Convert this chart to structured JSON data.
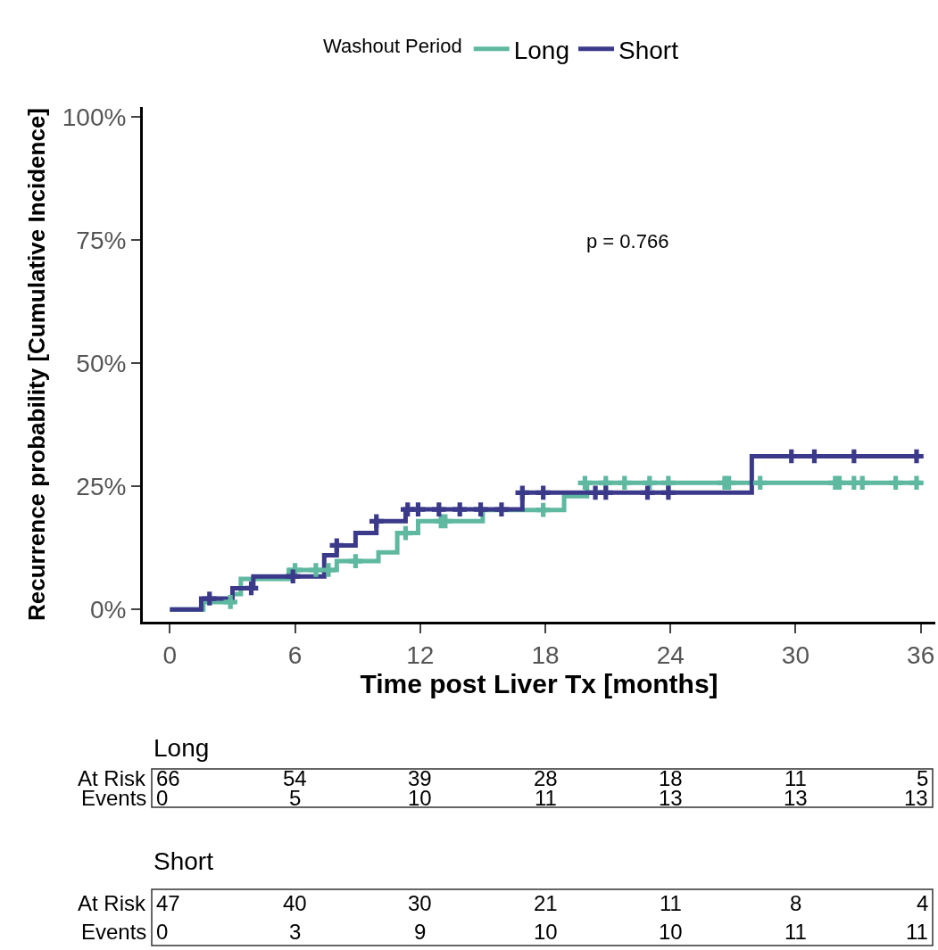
{
  "chart_data": {
    "type": "step",
    "xlabel": "Time post Liver Tx [months]",
    "ylabel": "Recurrence probability [Cumulative Incidence]",
    "legend_title": "Washout Period",
    "legend": "top",
    "xlim": [
      -1.3,
      36.7
    ],
    "xticks": [
      0,
      6,
      12,
      18,
      24,
      30,
      36
    ],
    "ylim": [
      -2.5,
      102
    ],
    "yticks": [
      {
        "value": 0,
        "label": "0%"
      },
      {
        "value": 25,
        "label": "25%"
      },
      {
        "value": 50,
        "label": "50%"
      },
      {
        "value": 75,
        "label": "75%"
      },
      {
        "value": 100,
        "label": "100%"
      }
    ],
    "marker": "none",
    "line_style": "solid",
    "annotations": [
      "p = 0.766",
      "Long",
      "At Risk",
      "66",
      "54",
      "39",
      "28",
      "18",
      "11",
      "5",
      "Events",
      "0",
      "5",
      "10",
      "11",
      "13",
      "13",
      "13",
      "Short",
      "At Risk",
      "47",
      "40",
      "30",
      "21",
      "11",
      "8",
      "4",
      "Events",
      "0",
      "3",
      "9",
      "10",
      "10",
      "11",
      "11"
    ],
    "series": [
      {
        "name": "Long",
        "color": "#5fb8a0",
        "x": [
          0,
          1.6,
          3.0,
          3.4,
          5.7,
          8.0,
          10.0,
          10.9,
          11.9,
          15.0,
          18.9,
          20.0,
          36.0
        ],
        "values": [
          0,
          1.5,
          3.1,
          6.2,
          8.0,
          9.8,
          11.6,
          15.5,
          17.9,
          20.2,
          23.0,
          25.7,
          25.7
        ]
      },
      {
        "name": "Short",
        "color": "#3b3a8a",
        "x": [
          0,
          1.5,
          3.0,
          4.0,
          7.4,
          8.0,
          8.9,
          9.9,
          11.3,
          16.9,
          27.9,
          36.0
        ],
        "values": [
          0,
          2.2,
          4.3,
          6.7,
          11.0,
          13.0,
          15.5,
          17.9,
          20.3,
          23.7,
          31.1,
          31.1
        ]
      },
      {
        "color": "#5fb8a0",
        "type": "scatter",
        "marker": "cross",
        "x": [
          2.9,
          6.0,
          7.0,
          7.6,
          8.9,
          11.3,
          13.0,
          13.2,
          17.9,
          19.9,
          20.9,
          21.8,
          23.0,
          23.9,
          26.6,
          26.8,
          28.3,
          31.9,
          32.1,
          32.8,
          33.2,
          34.8,
          35.8
        ],
        "values": [
          1.5,
          8.0,
          8.0,
          8.0,
          9.8,
          15.5,
          17.9,
          17.9,
          20.2,
          25.7,
          25.7,
          25.7,
          25.7,
          25.7,
          25.7,
          25.7,
          25.7,
          25.7,
          25.7,
          25.7,
          25.7,
          25.7,
          25.7
        ]
      },
      {
        "color": "#3b3a8a",
        "type": "scatter",
        "marker": "cross",
        "x": [
          1.9,
          3.9,
          5.9,
          8.0,
          9.9,
          11.4,
          11.9,
          12.9,
          13.9,
          14.9,
          15.9,
          16.9,
          17.9,
          20.4,
          20.9,
          22.9,
          23.9,
          29.8,
          30.9,
          32.8,
          35.8
        ],
        "values": [
          2.2,
          4.3,
          6.7,
          13.0,
          17.9,
          20.3,
          20.3,
          20.3,
          20.3,
          20.3,
          20.3,
          23.7,
          23.7,
          23.7,
          23.7,
          23.7,
          23.7,
          31.1,
          31.1,
          31.1,
          31.1
        ]
      }
    ]
  }
}
